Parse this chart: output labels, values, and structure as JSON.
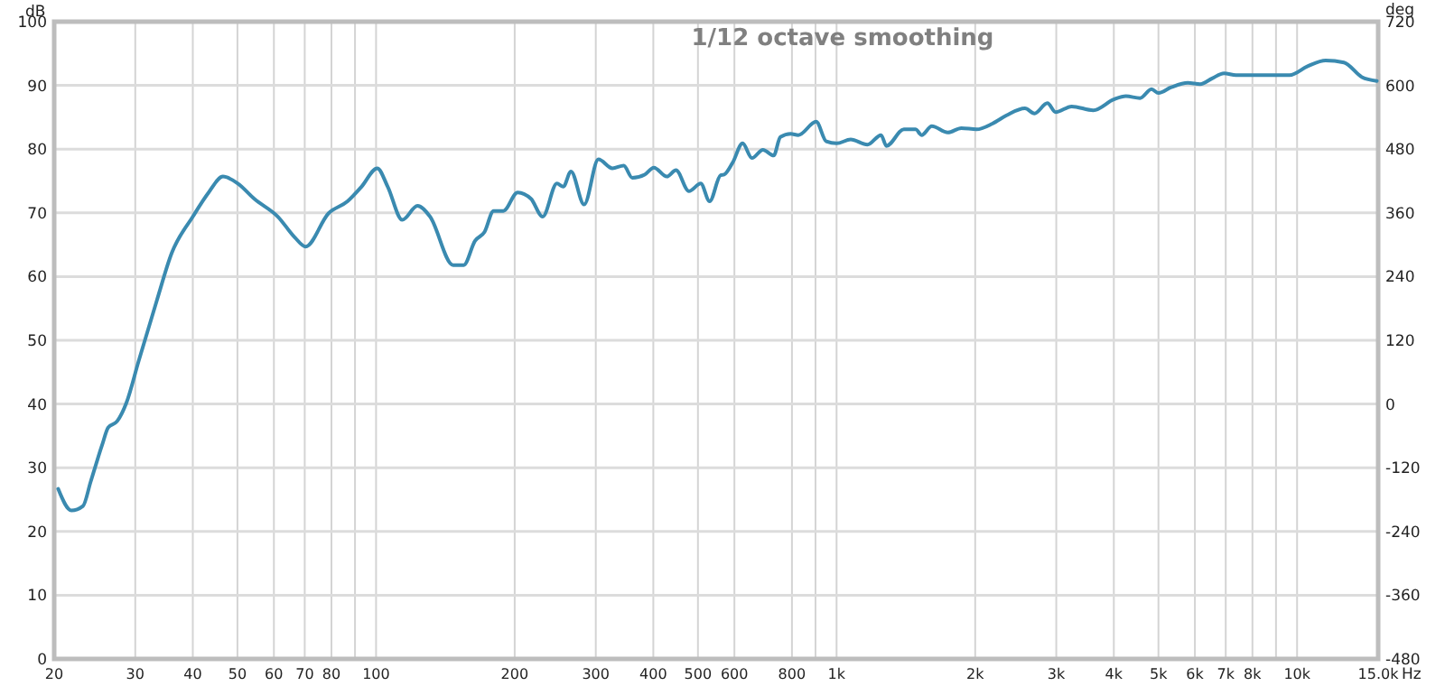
{
  "chart_data": {
    "type": "line",
    "title": "1/12 octave smoothing",
    "xlabel": "Hz",
    "ylabel": "dB",
    "y2label": "deg",
    "log": "x",
    "grid": true,
    "xlim": [
      20,
      15000
    ],
    "xticks": [
      20,
      30,
      40,
      50,
      60,
      70,
      80,
      {
        "value": 90,
        "label": null
      },
      100,
      200,
      300,
      400,
      500,
      600,
      800,
      {
        "value": 900,
        "label": null
      },
      {
        "value": 1000,
        "label": "1k"
      },
      {
        "value": 2000,
        "label": "2k"
      },
      {
        "value": 3000,
        "label": "3k"
      },
      {
        "value": 4000,
        "label": "4k"
      },
      {
        "value": 5000,
        "label": "5k"
      },
      {
        "value": 6000,
        "label": "6k"
      },
      {
        "value": 7000,
        "label": "7k"
      },
      {
        "value": 8000,
        "label": "8k"
      },
      {
        "value": 9000,
        "label": null
      },
      {
        "value": 10000,
        "label": "10k"
      },
      {
        "value": 15000,
        "label": "15.0k"
      }
    ],
    "ylim": [
      0,
      100
    ],
    "yticks": [
      0,
      10,
      20,
      30,
      40,
      50,
      60,
      70,
      80,
      90,
      100
    ],
    "y2lim": [
      -480,
      720
    ],
    "y2ticks": [
      -480,
      -360,
      -240,
      -120,
      0,
      120,
      240,
      360,
      480,
      600,
      720
    ],
    "series": [
      {
        "color": "#3a8ab0",
        "x": [
          20.4,
          21.8,
          23.1,
          24,
          25.4,
          26.2,
          27.4,
          28.7,
          30.5,
          33.4,
          36,
          40,
          43.3,
          46.5,
          50.1,
          54.4,
          61.2,
          66.7,
          70.3,
          78.8,
          86.7,
          93,
          100.6,
          106,
          114,
          123,
          131,
          147,
          155,
          164,
          172,
          180,
          189,
          203,
          217,
          230,
          247,
          255,
          265,
          283,
          304,
          326,
          345,
          360,
          383,
          401,
          428,
          448,
          478,
          507,
          530,
          560,
          570,
          595,
          625,
          655,
          692,
          730,
          755,
          795,
          826,
          903,
          950,
          1000,
          1073,
          1167,
          1249,
          1283,
          1400,
          1485,
          1530,
          1610,
          1744,
          1866,
          2013,
          2180,
          2340,
          2565,
          2690,
          2870,
          2990,
          3240,
          3610,
          4000,
          4250,
          4560,
          4830,
          5000,
          5330,
          5790,
          6160,
          6540,
          6940,
          7370,
          7830,
          8830,
          9630,
          10540,
          11540,
          12640,
          13830,
          14900
        ],
        "values": [
          26.7,
          23.3,
          24,
          27.8,
          33.5,
          36.3,
          37.3,
          40.2,
          46.7,
          56.2,
          63.7,
          69.4,
          73.2,
          75.7,
          74.6,
          72.2,
          69.4,
          66.1,
          64.7,
          69.9,
          71.8,
          74.1,
          77,
          74.1,
          68.9,
          71.1,
          69.4,
          61.8,
          61.8,
          65.6,
          67,
          70.3,
          70.3,
          73.2,
          72.2,
          69.4,
          74.6,
          74.1,
          76.5,
          71.3,
          78.4,
          77,
          77.4,
          75.5,
          76,
          77.1,
          75.7,
          76.7,
          73.4,
          74.6,
          71.8,
          75.9,
          76,
          77.9,
          80.9,
          78.6,
          79.9,
          79,
          81.9,
          82.4,
          82.2,
          84.3,
          81.2,
          80.9,
          81.5,
          80.7,
          82.2,
          80.5,
          83.1,
          83.1,
          82.2,
          83.6,
          82.6,
          83.3,
          83.1,
          84,
          85.3,
          86.4,
          85.6,
          87.2,
          85.8,
          86.7,
          86.1,
          87.8,
          88.3,
          88,
          89.4,
          88.8,
          89.7,
          90.4,
          90.2,
          91.1,
          91.9,
          91.6,
          91.6,
          91.6,
          91.6,
          93,
          93.9,
          93.6,
          91.3,
          90.7
        ]
      }
    ]
  }
}
